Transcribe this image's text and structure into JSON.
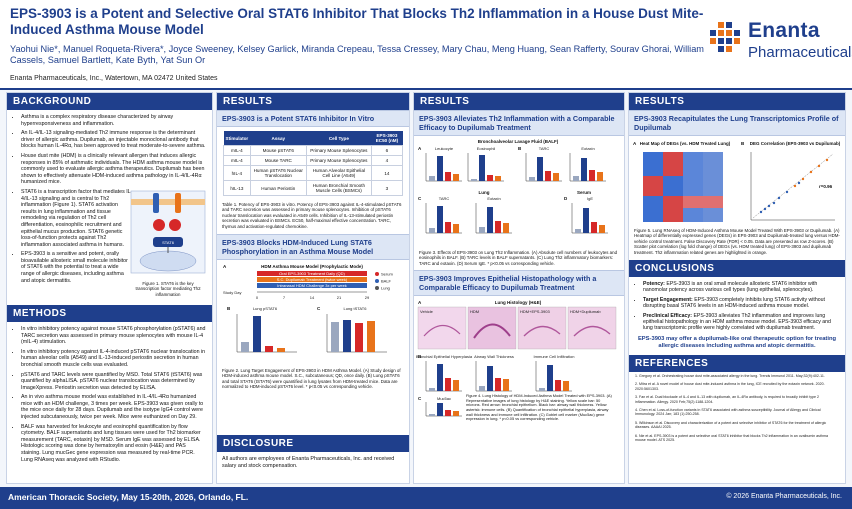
{
  "header": {
    "title": "EPS-3903 is a Potent and Selective Oral STAT6 Inhibitor That Blocks Th2 Inflammation in a House Dust Mite-Induced Asthma Mouse Model",
    "authors": "Yaohui Nie*, Manuel Roqueta-Rivera*, Joyce Sweeney, Kelsey Garlick, Miranda Crepeau, Tessa Cressey, Mary Chau, Meng Huang, Sean Rafferty, Sourav Ghorai, William Cassels, Samuel Bartlett, Kate Byth, Yat Sun Or",
    "affiliation": "Enanta Pharmaceuticals, Inc., Watertown, MA 02472 United States",
    "logo_name": "Enanta",
    "logo_sub": "Pharmaceuticals"
  },
  "background": {
    "heading": "BACKGROUND",
    "bullets": [
      "Asthma is a complex respiratory disease characterized by airway hyperresponsiveness and inflammation.",
      "An IL-4/IL-13 signaling-mediated Th2 immune response is the determinant driver of allergic asthma. Dupilumab, an injectable monoclonal antibody that blocks human IL-4Rα, has been approved to treat moderate-to-severe asthma.",
      "House dust mite (HDM) is a clinically relevant allergen that induces allergic responses in 85% of asthmatic individuals. The HDM asthma mouse model is commonly used to evaluate allergic asthma therapeutics. Dupilumab has been shown to effectively attenuate HDM-induced asthma pathology in IL-4/IL-4Rα humanized mice.",
      "STAT6 is a transcription factor that mediates IL-4/IL-13 signaling and is central to Th2 inflammation (Figure 1). STAT6 activation results in lung inflammation and tissue remodeling via regulation of Th2 cell differentiation, eosinophilic recruitment and epithelial mucus production. STAT6 genetic loss-of-function protects against Th2 inflammation associated asthma in humans.",
      "EPS-3903 is a sensitive and potent, orally bioavailable allosteric small molecule inhibitor of STAT6 with the potential to treat a wide range of allergic diseases, including asthma and atopic dermatitis."
    ],
    "fig1_caption": "Figure 1. STAT6 is the key transcription factor mediating Th2 inflammation",
    "fig1_label": "STAT6"
  },
  "methods": {
    "heading": "METHODS",
    "bullets": [
      "In vitro inhibitory potency against mouse STAT6 phosphorylation (pSTAT6) and TARC secretion was assessed in primary mouse splenocytes with mouse IL-4 (mIL-4) stimulation.",
      "In vitro inhibitory potency against IL-4-induced pSTAT6 nuclear translocation in human alveolar cells (A549) and IL-13-induced periostin secretion in human bronchial smooth muscle cells was evaluated.",
      "pSTAT6 and TARC levels were quantified by MSD. Total STAT6 (tSTAT6) was quantified by alphaLISA. pSTAT6 nuclear translocation was determined by ImageXpress. Periostin secretion was detected by ELISA.",
      "An in vivo asthma mouse model was established in IL-4/IL-4Rα humanized mice with an HDM challenge, 3 times per week. EPS-3903 was given orally to the mice once daily for 28 days. Dupilumab and the isotype IgG4 control were injected subcutaneously, twice per week. Mice were euthanized on Day 29.",
      "BALF was harvested for leukocyte and eosinophil quantification by flow cytometry. BALF supernatants and lung tissues were used for Th2 biomarker measurement (TARC, eotaxin) by MSD. Serum IgE was assessed by ELISA. Histologic scoring was done by hematoxylin and eosin (H&E) and PAS staining. Lung mucGec gene expression was measured by real-time PCR. Lung RNAseq was analyzed with RStudio."
    ]
  },
  "results1": {
    "heading": "RESULTS",
    "sub1": "EPS-3903 is a Potent STAT6 Inhibitor In Vitro",
    "table": {
      "headers": [
        "Stimulator",
        "Assay",
        "Cell Type",
        "EPS-3903 EC50 (nM)"
      ],
      "rows": [
        [
          "mIL-4",
          "Mouse pSTAT6",
          "Primary Mouse Splenocytes",
          "6"
        ],
        [
          "mIL-4",
          "Mouse TARC",
          "Primary Mouse Splenocytes",
          "4"
        ],
        [
          "hIL-4",
          "Human pSTAT6 Nuclear Translocation",
          "Human Alveolar Epithelial Cell Line (A549)",
          "14"
        ],
        [
          "hIL-13",
          "Human Periostin",
          "Human Bronchial Smooth Muscle Cells (BSMCs)",
          "3"
        ]
      ]
    },
    "table_caption": "Table 1. Potency of EPS-3903 in vitro. Potency of EPS-3903 against IL-4-stimulated pSTAT6 and TARC secretion was assessed in primary mouse splenocytes. Inhibition of pSTAT6 nuclear translocation was evaluated in A549 cells. Inhibition of IL-13-stimulated periostin secretion was evaluated in BSMCs. EC50, half-maximal effective concentration. TARC, thymus and activation-regulated chemokine.",
    "sub2": "EPS-3903 Blocks HDM-Induced Lung STAT6 Phosphorylation in an Asthma Mouse Model",
    "model_title": "HDM Asthma Mouse Model (Prophylactic Mode)",
    "bars": [
      "Oral EPS-3903 Treatment Daily (QD)",
      "S.C. Dupilumab Treatment (twice week)",
      "Intranasal HDM Challenge 3x per week"
    ],
    "study_day": "Study Day",
    "days": [
      "0",
      "7",
      "14",
      "21",
      "29"
    ],
    "legend": [
      "Serum",
      "BALF",
      "Lung"
    ],
    "panel_b": "Lung pSTAT6",
    "panel_c": "Lung tSTAT6",
    "fig2_caption": "Figure 2. Lung Target Engagement of EPS-3903 in HDM Asthma Model. (A) Study design of HDM-induced asthma mouse model. S.C., subcutaneous; QD, once daily. (B) Lung pSTAT6 and total STAT6 (tSTAT6) were quantified in lung lysates from HDM-treated mice. Data are normalized to HDM-induced pSTAT6 level. * p<0.05 vs corresponding vehicle."
  },
  "disclosure": {
    "heading": "DISCLOSURE",
    "text": "All authors are employees of Enanta Pharmaceuticals, Inc. and received salary and stock compensation."
  },
  "results2": {
    "heading": "RESULTS",
    "sub1": "EPS-3903 Alleviates Th2 Inflammation with a Comparable Efficacy to Dupilumab Treatment",
    "balf_title": "Bronchoalveolar Lavage Fluid (BALF)",
    "balf_panels": [
      "Leukocyte",
      "Eosinophil",
      "TARC",
      "Eotaxin"
    ],
    "lung_title": "Lung",
    "lung_panels": [
      "TARC",
      "Eotaxin",
      "IgE"
    ],
    "serum_title": "Serum",
    "fig3_caption": "Figure 3. Effects of EPS-3903 on Lung Th2 Inflammation. (A) Absolute cell numbers of leukocytes and eosinophils in BALF. (B) TARC levels in BALF supernatants. (C) Lung Th2 inflammatory biomarkers: TARC and eotaxin. (D) Serum IgE. * p<0.05 vs corresponding vehicle.",
    "sub2": "EPS-3903 Improves Epithelial Histopathology with a Comparable Efficacy to Dupilumab Treatment",
    "histo_title": "Lung Histology (H&E)",
    "histo_labels": [
      "Vehicle",
      "HDM",
      "HDM+EPS-3903",
      "HDM+Dupilumab"
    ],
    "score_panels": [
      "Bronchial Epithelial Hyperplasia",
      "Airway Wall Thickness",
      "Immune Cell Infiltration",
      "Muc5ac"
    ],
    "fig4_caption": "Figure 4. Lung Histology of HDM-Induced Asthma Model Treated with EPS-3903. (A) Representative images of lung histology by H&E staining. Yellow scale bar: 50 microns. Red arrow: bronchial epithelium. Black bar: airway wall thickness. Yellow asterisk: immune cells. (B) Quantification of bronchial epithelial hyperplasia, airway wall thickness and immune cell infiltration. (C) Goblet cell marker (Muc5ac) gene expression in lung. * p<0.05 vs corresponding vehicle."
  },
  "results3": {
    "heading": "RESULTS",
    "sub1": "EPS-3903 Recapitulates the Lung Transcriptomics Profile of Dupilumab",
    "panel_a": "Heat Map of DEGs (vs. HDM Treated Lung)",
    "panel_b": "DEG Correlation (EPS-3903 vs Dupilumab)",
    "r_value": "r=0.96",
    "fig5_caption": "Figure 5. Lung RNAseq of HDM-Induced Asthma Mouse Model Treated With EPS-3903 or Dupilumab. (A) Heatmap of differentially expressed genes (DEGs) in EPS-3903 and Dupilumab-treated lung versus HDM-vehicle control treatment. False Discovery Rate (FDR) < 0.05. Data are presented as row Z-scores. (B) Scatter plot correlation (log fold change) of DEGs (vs. HDM treated lung) of EPS-3903 and dupilumab treatment. Th2 inflammation related genes are highlighted in orange."
  },
  "conclusions": {
    "heading": "CONCLUSIONS",
    "bullets": [
      [
        "Potency: ",
        "EPS-3903 is an oral small molecule allosteric STAT6 inhibitor with nanomolar potency across various cell types (lung epithelial, splenocytes)."
      ],
      [
        "Target Engagement: ",
        "EPS-3903 completely inhibits lung STAT6 activity without disrupting basal STAT6 levels in an HDM-induced asthma mouse model."
      ],
      [
        "Preclinical Efficacy: ",
        "EPS-3903 alleviates Th2 inflammation and improves lung epithelial histopathology in an HDM asthma mouse model. EPS-3903 efficacy and lung transcriptomic profile were highly correlated with dupilumab treatment."
      ]
    ],
    "closing": "EPS-3903 may offer a dupilumab-like oral therapeutic option for treating allergic diseases including asthma and atopic dermatitis."
  },
  "references": {
    "heading": "REFERENCES",
    "items": [
      "1. Gregory et al. Orchestrating house dust mite-associated allergy in the lung. Trends Immunol 2011. May;32(9):402-11.",
      "2. Mitra et al. A novel model of house dust mite-induced asthma in the lung, ICE recruited by the eotaxin network. 2020. 2020:5601303.",
      "3. Fan et al. Dual blockade of IL-4 and IL-13 with dupilumab, an IL-4Rα antibody, is required to broadly inhibit type 2 inflammation. Allergy. 2020 Feb;75(2):1188-1204.",
      "4. Chen et al. Loss-of-function variants in STAT6 associated with asthma susceptibility. Journal of Allergy and Clinical Immunology. 2024 Jan; 183 (1):250-258.",
      "5. Wilkinson et al. Discovery and characterization of a potent and selective inhibitor of STAT6 for the treatment of allergic diseases. AAAAI 2025.",
      "6. Nie et al. EPS-3903 is a potent and selective oral STAT6 inhibitor that blocks Th2 inflammation in an ovalbumin asthma mouse model. ATS 2025."
    ]
  },
  "footer": {
    "left": "American Thoracic Society, May 15-20th, 2026, Orlando, FL.",
    "right": "© 2026 Enanta Pharmaceuticals, Inc."
  },
  "colors": {
    "navy": "#1f3f8c",
    "light_blue": "#dde6f5",
    "orange": "#e8731a",
    "red": "#d62828",
    "blue": "#2f5fb3"
  }
}
